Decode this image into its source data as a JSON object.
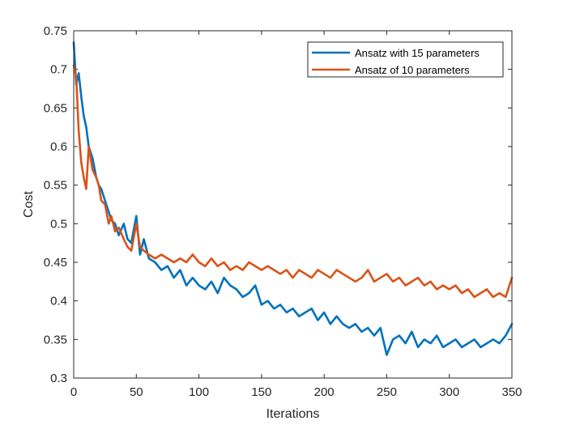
{
  "chart_data": {
    "type": "line",
    "title": "",
    "xlabel": "Iterations",
    "ylabel": "Cost",
    "xlim": [
      0,
      350
    ],
    "ylim": [
      0.3,
      0.75
    ],
    "x_ticks": [
      0,
      50,
      100,
      150,
      200,
      250,
      300,
      350
    ],
    "y_ticks": [
      0.3,
      0.35,
      0.4,
      0.45,
      0.5,
      0.55,
      0.6,
      0.65,
      0.7,
      0.75
    ],
    "x_tick_labels": [
      "0",
      "50",
      "100",
      "150",
      "200",
      "250",
      "300",
      "350"
    ],
    "y_tick_labels": [
      "0.3",
      "0.35",
      "0.4",
      "0.45",
      "0.5",
      "0.55",
      "0.6",
      "0.65",
      "0.7",
      "0.75"
    ],
    "grid": false,
    "legend_position": "top-right",
    "series": [
      {
        "name": "Ansatz with 15 parameters",
        "color": "#0072BD",
        "x": [
          0,
          2,
          4,
          6,
          8,
          10,
          12,
          15,
          18,
          20,
          22,
          25,
          28,
          30,
          33,
          36,
          40,
          43,
          46,
          50,
          53,
          56,
          60,
          65,
          70,
          75,
          80,
          85,
          90,
          95,
          100,
          105,
          110,
          115,
          120,
          125,
          130,
          135,
          140,
          145,
          150,
          155,
          160,
          165,
          170,
          175,
          180,
          185,
          190,
          195,
          200,
          205,
          210,
          215,
          220,
          225,
          230,
          235,
          240,
          245,
          250,
          255,
          260,
          265,
          270,
          275,
          280,
          285,
          290,
          295,
          300,
          305,
          310,
          315,
          320,
          325,
          330,
          335,
          340,
          345,
          350
        ],
        "values": [
          0.735,
          0.68,
          0.695,
          0.665,
          0.64,
          0.625,
          0.6,
          0.585,
          0.56,
          0.55,
          0.545,
          0.53,
          0.515,
          0.505,
          0.5,
          0.485,
          0.5,
          0.48,
          0.475,
          0.51,
          0.46,
          0.48,
          0.455,
          0.45,
          0.44,
          0.445,
          0.43,
          0.44,
          0.42,
          0.43,
          0.42,
          0.415,
          0.425,
          0.41,
          0.43,
          0.42,
          0.415,
          0.405,
          0.41,
          0.42,
          0.395,
          0.4,
          0.39,
          0.395,
          0.385,
          0.39,
          0.38,
          0.385,
          0.39,
          0.375,
          0.385,
          0.37,
          0.38,
          0.37,
          0.365,
          0.37,
          0.36,
          0.365,
          0.355,
          0.365,
          0.33,
          0.35,
          0.355,
          0.345,
          0.36,
          0.34,
          0.35,
          0.345,
          0.355,
          0.34,
          0.345,
          0.35,
          0.34,
          0.345,
          0.35,
          0.34,
          0.345,
          0.35,
          0.345,
          0.355,
          0.37
        ]
      },
      {
        "name": "Ansatz of 10 parameters",
        "color": "#D95319",
        "x": [
          0,
          2,
          4,
          6,
          8,
          10,
          12,
          15,
          18,
          20,
          22,
          25,
          28,
          30,
          33,
          36,
          40,
          43,
          46,
          50,
          53,
          56,
          60,
          65,
          70,
          75,
          80,
          85,
          90,
          95,
          100,
          105,
          110,
          115,
          120,
          125,
          130,
          135,
          140,
          145,
          150,
          155,
          160,
          165,
          170,
          175,
          180,
          185,
          190,
          195,
          200,
          205,
          210,
          215,
          220,
          225,
          230,
          235,
          240,
          245,
          250,
          255,
          260,
          265,
          270,
          275,
          280,
          285,
          290,
          295,
          300,
          305,
          310,
          315,
          320,
          325,
          330,
          335,
          340,
          345,
          350
        ],
        "values": [
          0.705,
          0.69,
          0.62,
          0.58,
          0.56,
          0.545,
          0.6,
          0.57,
          0.56,
          0.55,
          0.53,
          0.525,
          0.5,
          0.51,
          0.49,
          0.495,
          0.48,
          0.47,
          0.465,
          0.5,
          0.47,
          0.465,
          0.46,
          0.455,
          0.46,
          0.455,
          0.45,
          0.455,
          0.45,
          0.46,
          0.45,
          0.445,
          0.455,
          0.445,
          0.45,
          0.44,
          0.445,
          0.44,
          0.45,
          0.445,
          0.44,
          0.445,
          0.44,
          0.435,
          0.44,
          0.43,
          0.44,
          0.435,
          0.43,
          0.44,
          0.435,
          0.43,
          0.44,
          0.435,
          0.43,
          0.425,
          0.43,
          0.44,
          0.425,
          0.43,
          0.435,
          0.425,
          0.43,
          0.42,
          0.425,
          0.43,
          0.42,
          0.425,
          0.415,
          0.42,
          0.415,
          0.42,
          0.41,
          0.415,
          0.405,
          0.41,
          0.415,
          0.405,
          0.41,
          0.405,
          0.43
        ]
      }
    ]
  }
}
